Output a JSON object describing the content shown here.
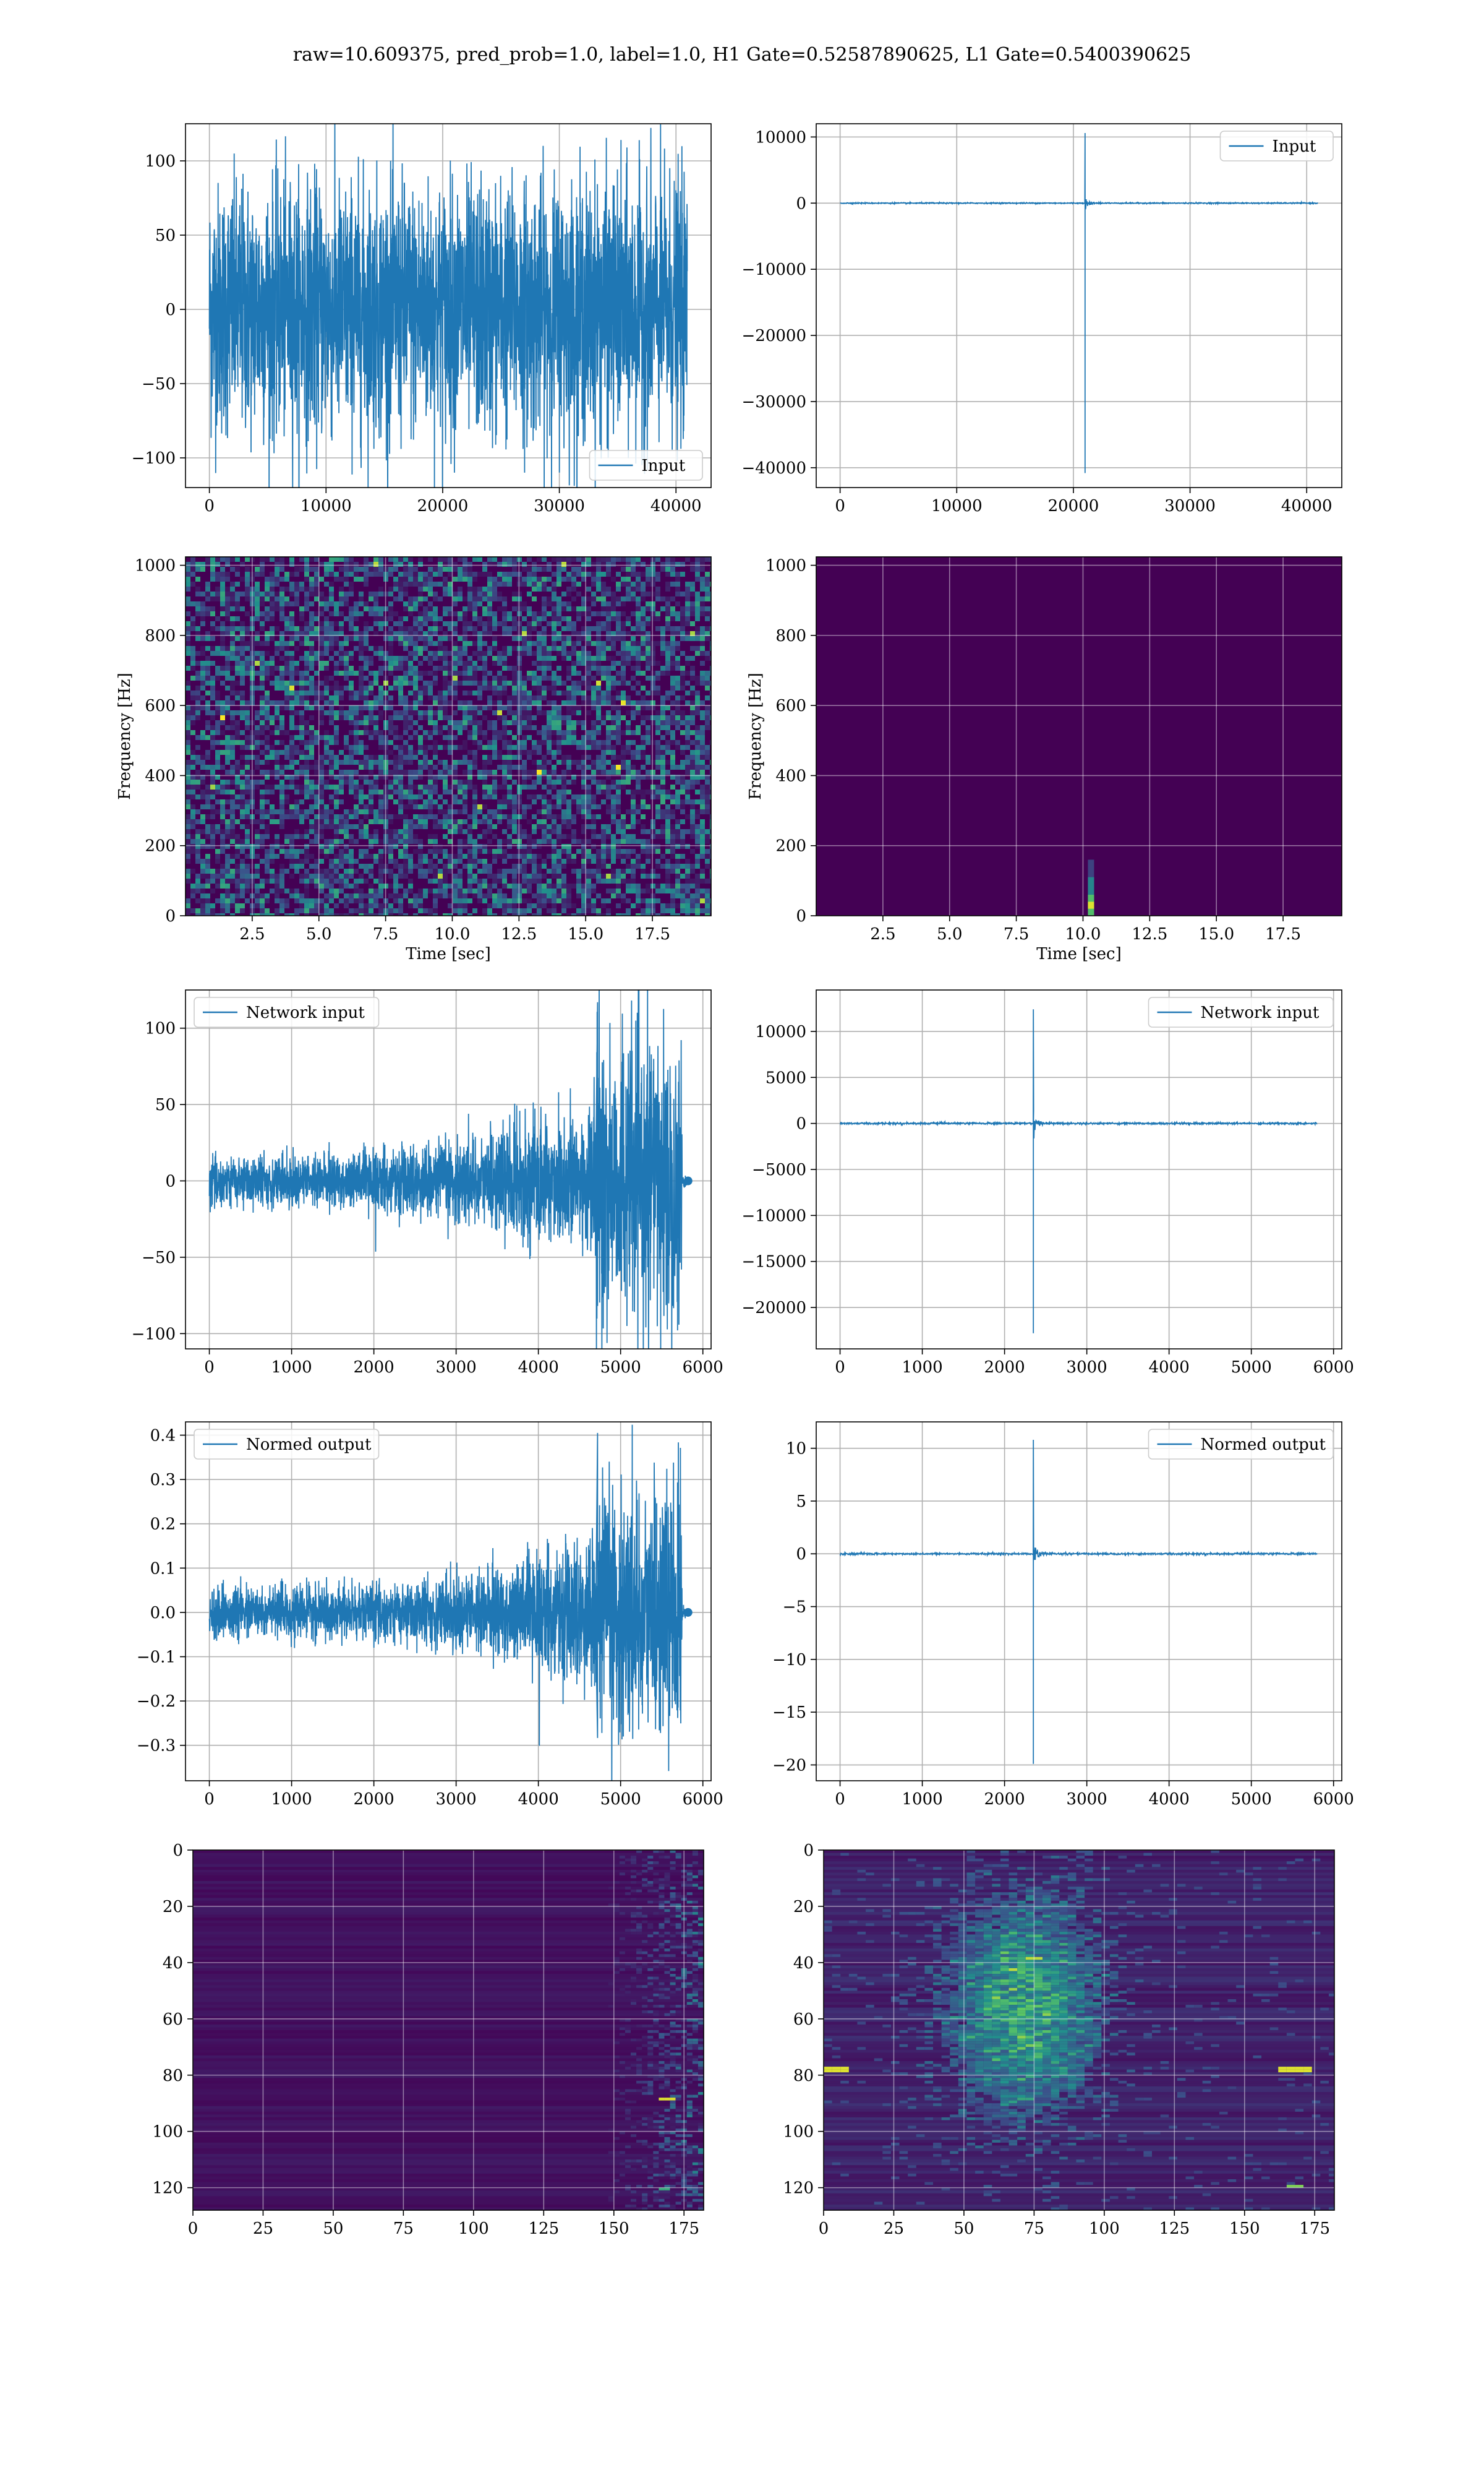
{
  "figure": {
    "suptitle": "raw=10.609375, pred_prob=1.0, label=1.0, H1 Gate=0.52587890625, L1 Gate=0.5400390625"
  },
  "colors": {
    "line": "#1f77b4",
    "viridis_low": "#440154",
    "viridis_mid": "#21918c",
    "viridis_high": "#fde725",
    "grid": "#b0b0b0"
  },
  "chart_data": [
    {
      "id": "input-h1",
      "type": "line",
      "xlim": [
        -2048,
        43008
      ],
      "ylim": [
        -120,
        125
      ],
      "xticks": [
        0,
        10000,
        20000,
        30000,
        40000
      ],
      "yticks": [
        -100,
        -50,
        0,
        50,
        100
      ],
      "grid": true,
      "legend": "lower-right",
      "series": [
        {
          "name": "Input",
          "x_range": [
            0,
            40960
          ],
          "amplitude": 100,
          "shape": "stationary noise"
        }
      ]
    },
    {
      "id": "input-l1",
      "type": "line",
      "xlim": [
        -2048,
        43008
      ],
      "ylim": [
        -43000,
        12000
      ],
      "xticks": [
        0,
        10000,
        20000,
        30000,
        40000
      ],
      "yticks": [
        -40000,
        -30000,
        -20000,
        -10000,
        0,
        10000
      ],
      "grid": true,
      "legend": "upper-right",
      "series": [
        {
          "name": "Input",
          "x_range": [
            0,
            40960
          ],
          "spike_x": 21000,
          "spike_max": 10600,
          "spike_min": -40800,
          "shape": "single glitch spike"
        }
      ]
    },
    {
      "id": "spectrogram-h1",
      "type": "heatmap",
      "xlabel": "Time [sec]",
      "ylabel": "Frequency [Hz]",
      "xlim": [
        0,
        19.7
      ],
      "ylim": [
        0,
        1024
      ],
      "xticks": [
        2.5,
        5.0,
        7.5,
        10.0,
        12.5,
        15.0,
        17.5
      ],
      "yticks": [
        0,
        200,
        400,
        600,
        800,
        1000
      ],
      "grid": true,
      "pattern": "broadband speckle noise"
    },
    {
      "id": "spectrogram-l1",
      "type": "heatmap",
      "xlabel": "Time [sec]",
      "ylabel": "Frequency [Hz]",
      "xlim": [
        0,
        19.7
      ],
      "ylim": [
        0,
        1024
      ],
      "xticks": [
        2.5,
        5.0,
        7.5,
        10.0,
        12.5,
        15.0,
        17.5
      ],
      "yticks": [
        0,
        200,
        400,
        600,
        800,
        1000
      ],
      "grid": true,
      "pattern": "dark with bright blip near t=10.3s, f<60Hz"
    },
    {
      "id": "network-input-h1",
      "type": "line",
      "xlim": [
        -290,
        6100
      ],
      "ylim": [
        -110,
        125
      ],
      "xticks": [
        0,
        1000,
        2000,
        3000,
        4000,
        5000,
        6000
      ],
      "yticks": [
        -100,
        -50,
        0,
        50,
        100
      ],
      "grid": true,
      "legend": "upper-left",
      "series": [
        {
          "name": "Network input",
          "x_range": [
            0,
            5800
          ],
          "amplitude_start": 18,
          "amplitude_end": 100,
          "burst_start_x": 4700,
          "peak": 117
        }
      ]
    },
    {
      "id": "network-input-l1",
      "type": "line",
      "xlim": [
        -290,
        6100
      ],
      "ylim": [
        -24500,
        14500
      ],
      "xticks": [
        0,
        1000,
        2000,
        3000,
        4000,
        5000,
        6000
      ],
      "yticks": [
        -20000,
        -15000,
        -10000,
        -5000,
        0,
        5000,
        10000
      ],
      "grid": true,
      "legend": "upper-right",
      "series": [
        {
          "name": "Network input",
          "x_range": [
            0,
            5800
          ],
          "spike_x": 2350,
          "spike_max": 12400,
          "spike_min": -22800
        }
      ]
    },
    {
      "id": "normed-output-h1",
      "type": "line",
      "xlim": [
        -290,
        6100
      ],
      "ylim": [
        -0.38,
        0.43
      ],
      "xticks": [
        0,
        1000,
        2000,
        3000,
        4000,
        5000,
        6000
      ],
      "yticks": [
        -0.3,
        -0.2,
        -0.1,
        0.0,
        0.1,
        0.2,
        0.3,
        0.4
      ],
      "grid": true,
      "legend": "upper-left",
      "series": [
        {
          "name": "Normed output",
          "x_range": [
            0,
            5800
          ],
          "amplitude_start": 0.06,
          "amplitude_end": 0.3,
          "burst_start_x": 4700,
          "peak": 0.405
        }
      ]
    },
    {
      "id": "normed-output-l1",
      "type": "line",
      "xlim": [
        -290,
        6100
      ],
      "ylim": [
        -21.5,
        12.5
      ],
      "xticks": [
        0,
        1000,
        2000,
        3000,
        4000,
        5000,
        6000
      ],
      "yticks": [
        -20,
        -15,
        -10,
        -5,
        0,
        5,
        10
      ],
      "grid": true,
      "legend": "upper-right",
      "series": [
        {
          "name": "Normed output",
          "x_range": [
            0,
            5800
          ],
          "spike_x": 2350,
          "spike_max": 10.8,
          "spike_min": -19.9
        }
      ]
    },
    {
      "id": "feature-map-h1",
      "type": "heatmap",
      "xlim": [
        0,
        182
      ],
      "ylim": [
        128,
        0
      ],
      "xticks": [
        0,
        25,
        50,
        75,
        100,
        125,
        150,
        175
      ],
      "yticks": [
        0,
        20,
        40,
        60,
        80,
        100,
        120
      ],
      "grid": true,
      "pattern": "dark rows, activity after column 150"
    },
    {
      "id": "feature-map-l1",
      "type": "heatmap",
      "xlim": [
        0,
        182
      ],
      "ylim": [
        128,
        0
      ],
      "xticks": [
        0,
        25,
        50,
        75,
        100,
        125,
        150,
        175
      ],
      "yticks": [
        0,
        20,
        40,
        60,
        80,
        100,
        120
      ],
      "grid": true,
      "pattern": "activity centered near column 70, rows 20-100"
    }
  ]
}
